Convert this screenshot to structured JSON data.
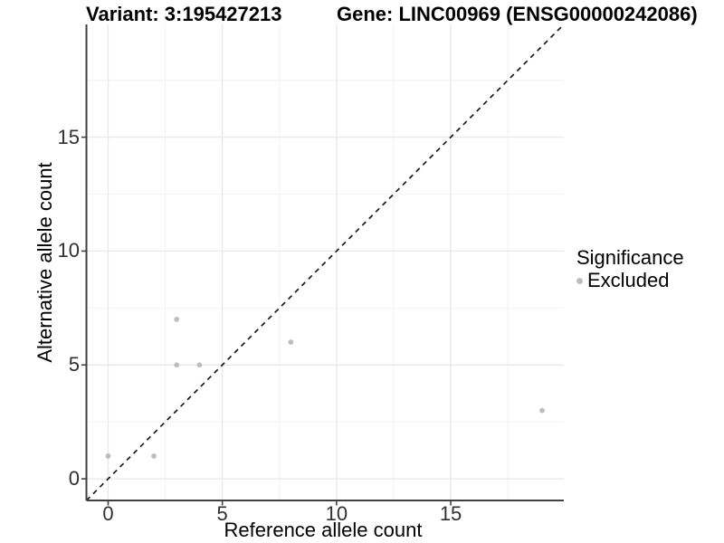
{
  "header": {
    "variant_title": "Variant: 3:195427213",
    "gene_title": "Gene: LINC00969 (ENSG00000242086)"
  },
  "chart_data": {
    "type": "scatter",
    "title_left": "Variant: 3:195427213",
    "title_right": "Gene: LINC00969 (ENSG00000242086)",
    "xlabel": "Reference allele count",
    "ylabel": "Alternative allele count",
    "xlim": [
      -0.95,
      19.95
    ],
    "ylim": [
      -0.95,
      19.95
    ],
    "x_major_ticks": [
      0,
      5,
      10,
      15
    ],
    "y_major_ticks": [
      0,
      5,
      10,
      15
    ],
    "x_tick_labels": [
      "0",
      "5",
      "10",
      "15"
    ],
    "y_tick_labels": [
      "0",
      "5",
      "10",
      "15"
    ],
    "minor_gridlines": [
      2.5,
      7.5,
      12.5,
      17.5
    ],
    "grid": "major+minor",
    "reference_line": {
      "type": "identity y=x",
      "style": "dashed",
      "color": "#1a1a1a"
    },
    "series": [
      {
        "name": "Excluded",
        "color": "#bebebe",
        "points": [
          [
            0,
            1
          ],
          [
            2,
            1
          ],
          [
            3,
            5
          ],
          [
            3,
            7
          ],
          [
            4,
            5
          ],
          [
            8,
            6
          ],
          [
            19,
            3
          ]
        ]
      }
    ],
    "legend": {
      "position": "right",
      "title": "Significance",
      "items": [
        {
          "label": "Excluded",
          "color": "#bebebe"
        }
      ]
    }
  },
  "style": {
    "colors": {
      "background": "#ffffff",
      "axis_line": "#404040",
      "tick_mark": "#404040",
      "grid_major": "#e9e9e9",
      "grid_minor": "#f4f4f4",
      "point": "#bebebe",
      "dashed_line": "#1a1a1a",
      "tick_text": "#303030",
      "title_text": "#000000"
    }
  }
}
